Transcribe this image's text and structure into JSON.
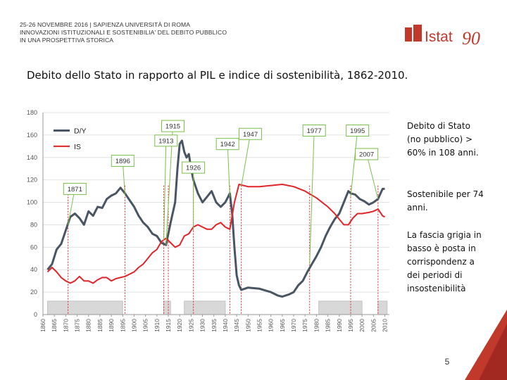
{
  "header": {
    "line1": "25-26 NOVEMBRE 2016 | SAPIENZA UNIVERSITÀ DI ROMA",
    "line2": "INNOVAZIONI ISTITUZIONALI E SOSTENIBILIA' DEL DEBITO PUBBLICO",
    "line3": "IN UNA PROSPETTIVA STORICA"
  },
  "logo": {
    "text": "Istat",
    "number": "90",
    "color": "#c0392b"
  },
  "title": "Debito dello Stato in rapporto al PIL e indice di sostenibilità, 1862-2010.",
  "side_text": {
    "p1": "Debito di Stato (no pubblico) > 60% in 108 anni.",
    "p2": "Sostenibile per 74 anni.",
    "p3": "La fascia grigia in basso è posta in corrispondenz a dei periodi di insostenibilità"
  },
  "page_number": "5",
  "colors": {
    "accent": "#c0392b",
    "dy": "#4a5563",
    "is": "#e0252a",
    "callout": "#7cbf4a"
  },
  "chart_data": {
    "type": "line",
    "title": "",
    "xlabel": "",
    "ylabel": "",
    "xlim": [
      1860,
      2012
    ],
    "ylim": [
      0,
      180
    ],
    "yticks": [
      0,
      20,
      40,
      60,
      80,
      100,
      120,
      140,
      160,
      180
    ],
    "xticks": [
      "1860",
      "1865",
      "1870",
      "1875",
      "1880",
      "1885",
      "1890",
      "1895",
      "1900",
      "1905",
      "1910",
      "1915",
      "1920",
      "1925",
      "1930",
      "1935",
      "1940",
      "1945",
      "1950",
      "1955",
      "1960",
      "1965",
      "1970",
      "1975",
      "1980",
      "1985",
      "1990",
      "1995",
      "2000",
      "2005",
      "2010"
    ],
    "legend": [
      "D/Y",
      "IS"
    ],
    "series": [
      {
        "name": "D/Y",
        "color": "#4a5563",
        "points": [
          [
            1862,
            40
          ],
          [
            1864,
            45
          ],
          [
            1866,
            58
          ],
          [
            1868,
            63
          ],
          [
            1870,
            75
          ],
          [
            1872,
            87
          ],
          [
            1874,
            90
          ],
          [
            1876,
            86
          ],
          [
            1878,
            80
          ],
          [
            1880,
            92
          ],
          [
            1882,
            88
          ],
          [
            1884,
            96
          ],
          [
            1886,
            95
          ],
          [
            1888,
            103
          ],
          [
            1890,
            106
          ],
          [
            1892,
            108
          ],
          [
            1894,
            113
          ],
          [
            1896,
            108
          ],
          [
            1898,
            102
          ],
          [
            1900,
            96
          ],
          [
            1902,
            88
          ],
          [
            1904,
            82
          ],
          [
            1906,
            78
          ],
          [
            1908,
            72
          ],
          [
            1910,
            70
          ],
          [
            1912,
            64
          ],
          [
            1914,
            62
          ],
          [
            1915,
            72
          ],
          [
            1916,
            82
          ],
          [
            1918,
            100
          ],
          [
            1919,
            130
          ],
          [
            1920,
            152
          ],
          [
            1921,
            155
          ],
          [
            1922,
            145
          ],
          [
            1923,
            140
          ],
          [
            1924,
            143
          ],
          [
            1925,
            130
          ],
          [
            1926,
            120
          ],
          [
            1928,
            108
          ],
          [
            1930,
            100
          ],
          [
            1932,
            105
          ],
          [
            1934,
            110
          ],
          [
            1936,
            100
          ],
          [
            1938,
            96
          ],
          [
            1940,
            100
          ],
          [
            1942,
            108
          ],
          [
            1943,
            90
          ],
          [
            1944,
            60
          ],
          [
            1945,
            35
          ],
          [
            1946,
            26
          ],
          [
            1947,
            22
          ],
          [
            1950,
            24
          ],
          [
            1955,
            23
          ],
          [
            1960,
            20
          ],
          [
            1963,
            17
          ],
          [
            1965,
            16
          ],
          [
            1968,
            18
          ],
          [
            1970,
            20
          ],
          [
            1972,
            26
          ],
          [
            1974,
            30
          ],
          [
            1976,
            38
          ],
          [
            1978,
            45
          ],
          [
            1980,
            52
          ],
          [
            1982,
            60
          ],
          [
            1984,
            70
          ],
          [
            1986,
            78
          ],
          [
            1988,
            85
          ],
          [
            1990,
            90
          ],
          [
            1992,
            100
          ],
          [
            1994,
            110
          ],
          [
            1995,
            108
          ],
          [
            1997,
            107
          ],
          [
            1999,
            103
          ],
          [
            2001,
            101
          ],
          [
            2003,
            98
          ],
          [
            2005,
            100
          ],
          [
            2007,
            103
          ],
          [
            2009,
            112
          ],
          [
            2010,
            112
          ]
        ]
      },
      {
        "name": "IS",
        "color": "#e0252a",
        "points": [
          [
            1862,
            38
          ],
          [
            1864,
            42
          ],
          [
            1866,
            38
          ],
          [
            1868,
            33
          ],
          [
            1870,
            30
          ],
          [
            1872,
            28
          ],
          [
            1874,
            30
          ],
          [
            1876,
            34
          ],
          [
            1878,
            30
          ],
          [
            1880,
            30
          ],
          [
            1882,
            28
          ],
          [
            1884,
            31
          ],
          [
            1886,
            33
          ],
          [
            1888,
            33
          ],
          [
            1890,
            30
          ],
          [
            1892,
            32
          ],
          [
            1894,
            33
          ],
          [
            1896,
            34
          ],
          [
            1898,
            36
          ],
          [
            1900,
            38
          ],
          [
            1902,
            42
          ],
          [
            1904,
            45
          ],
          [
            1906,
            50
          ],
          [
            1908,
            55
          ],
          [
            1910,
            58
          ],
          [
            1912,
            65
          ],
          [
            1914,
            68
          ],
          [
            1916,
            64
          ],
          [
            1918,
            60
          ],
          [
            1920,
            62
          ],
          [
            1922,
            70
          ],
          [
            1924,
            72
          ],
          [
            1926,
            78
          ],
          [
            1928,
            80
          ],
          [
            1930,
            78
          ],
          [
            1932,
            76
          ],
          [
            1934,
            76
          ],
          [
            1936,
            80
          ],
          [
            1938,
            82
          ],
          [
            1940,
            78
          ],
          [
            1942,
            76
          ],
          [
            1944,
            100
          ],
          [
            1946,
            116
          ],
          [
            1948,
            115
          ],
          [
            1950,
            114
          ],
          [
            1955,
            114
          ],
          [
            1960,
            115
          ],
          [
            1965,
            116
          ],
          [
            1970,
            114
          ],
          [
            1975,
            110
          ],
          [
            1980,
            104
          ],
          [
            1985,
            96
          ],
          [
            1988,
            90
          ],
          [
            1990,
            85
          ],
          [
            1992,
            80
          ],
          [
            1994,
            80
          ],
          [
            1996,
            86
          ],
          [
            1998,
            90
          ],
          [
            2000,
            90
          ],
          [
            2003,
            91
          ],
          [
            2005,
            92
          ],
          [
            2007,
            94
          ],
          [
            2009,
            88
          ],
          [
            2010,
            87
          ]
        ]
      }
    ],
    "unsustainable_periods": [
      [
        1862,
        1895
      ],
      [
        1913,
        1916
      ],
      [
        1922,
        1940
      ],
      [
        1981,
        2000
      ],
      [
        2007,
        2011
      ]
    ],
    "markers": [
      1871,
      1896,
      1913,
      1915,
      1926,
      1942,
      1947,
      1977,
      1995,
      2007
    ],
    "annotations": [
      "1915",
      "1913",
      "1896",
      "1871",
      "1947",
      "1942",
      "1926",
      "1977",
      "1995",
      "2007"
    ]
  }
}
